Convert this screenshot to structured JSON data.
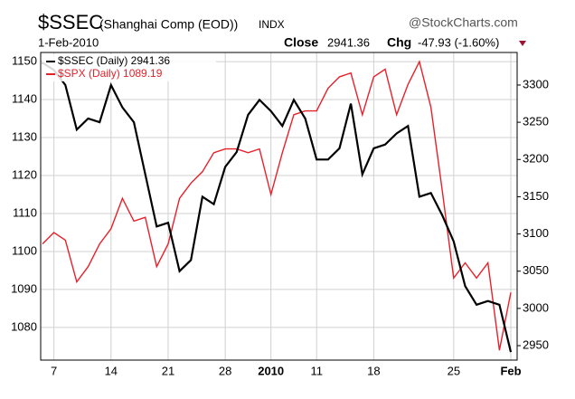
{
  "chart_data": {
    "type": "line",
    "title": "$SSEC",
    "subtitle": "(Shanghai Comp (EOD))",
    "exchange": "INDX",
    "date": "1-Feb-2010",
    "close_label": "Close",
    "close_value": "2941.36",
    "chg_label": "Chg",
    "chg_value": "-47.93 (-1.60%)",
    "source": "@StockCharts.com",
    "categories": [
      null,
      "7",
      null,
      null,
      null,
      null,
      "14",
      null,
      null,
      null,
      null,
      "21",
      null,
      null,
      null,
      null,
      "28",
      null,
      null,
      null,
      "2010",
      null,
      null,
      null,
      "11",
      null,
      null,
      null,
      null,
      "18",
      null,
      null,
      null,
      null,
      null,
      null,
      "25",
      null,
      null,
      null,
      null,
      "Feb"
    ],
    "series": [
      {
        "name": "$SSEC (Daily) 2941.36",
        "color": "#000000",
        "axis": "y2",
        "values": [
          3330,
          3320,
          3300,
          3240,
          3255,
          3250,
          3300,
          3270,
          3250,
          3180,
          3110,
          3115,
          3050,
          3065,
          3150,
          3140,
          3190,
          3210,
          3260,
          3280,
          3265,
          3245,
          3280,
          3255,
          3200,
          3200,
          3215,
          3275,
          3180,
          3215,
          3220,
          3235,
          3245,
          3150,
          3155,
          3125,
          3090,
          3030,
          3005,
          3010,
          3005,
          2941.36
        ]
      },
      {
        "name": "$SPX (Daily) 1089.19",
        "color": "#e8202a",
        "axis": "y",
        "values": [
          1102,
          1105,
          1103,
          1092,
          1096,
          1102,
          1106,
          1114,
          1108,
          1109,
          1096,
          1102,
          1114,
          1118,
          1121,
          1126,
          1127,
          1127,
          1126,
          1127,
          1115,
          1126,
          1136,
          1137,
          1137,
          1143,
          1146,
          1147,
          1136,
          1146,
          1148,
          1136,
          1144,
          1150,
          1138,
          1116,
          1093,
          1097,
          1093,
          1097,
          1074,
          1089.19
        ]
      }
    ],
    "ylim": [
      1071.4,
      1152.4
    ],
    "yticks": [
      1080,
      1090,
      1100,
      1110,
      1120,
      1130,
      1140,
      1150
    ],
    "y2lim": [
      2930.6,
      3343.7
    ],
    "y2ticks": [
      2950,
      3000,
      3050,
      3100,
      3150,
      3200,
      3250,
      3300
    ],
    "grid": true,
    "legend": "upper left"
  }
}
